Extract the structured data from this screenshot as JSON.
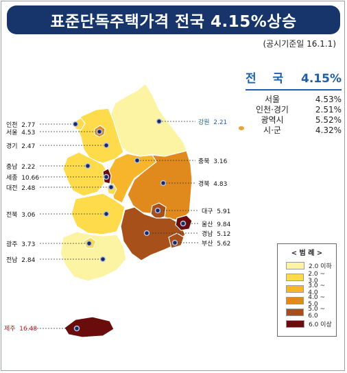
{
  "title": "표준단독주택가격 전국 4.15%상승",
  "subtitle": "(공시기준일 16.1.1)",
  "summary": {
    "national_label": "전 국",
    "national_value": "4.15%",
    "rows": [
      {
        "label": "서울",
        "value": "4.53%"
      },
      {
        "label": "인천·경기",
        "value": "2.51%"
      },
      {
        "label": "광역시",
        "value": "5.52%"
      },
      {
        "label": "시·군",
        "value": "4.32%"
      }
    ]
  },
  "regions": {
    "incheon": {
      "name": "인천",
      "value": "2.77"
    },
    "seoul": {
      "name": "서울",
      "value": "4.53"
    },
    "gyeonggi": {
      "name": "경기",
      "value": "2.47"
    },
    "chungnam": {
      "name": "충남",
      "value": "2.22"
    },
    "sejong": {
      "name": "세종",
      "value": "10.66"
    },
    "daejeon": {
      "name": "대전",
      "value": "2.48"
    },
    "jeonbuk": {
      "name": "전북",
      "value": "3.06"
    },
    "gwangju": {
      "name": "광주",
      "value": "3.73"
    },
    "jeonnam": {
      "name": "전남",
      "value": "2.84"
    },
    "jeju": {
      "name": "제주",
      "value": "16.48"
    },
    "gangwon": {
      "name": "강원",
      "value": "2.21"
    },
    "chungbuk": {
      "name": "충북",
      "value": "3.16"
    },
    "gyeongbuk": {
      "name": "경북",
      "value": "4.83"
    },
    "daegu": {
      "name": "대구",
      "value": "5.91"
    },
    "ulsan": {
      "name": "울산",
      "value": "9.84"
    },
    "gyeongnam": {
      "name": "경남",
      "value": "5.12"
    },
    "busan": {
      "name": "부산",
      "value": "5.62"
    }
  },
  "legend": {
    "title": "< 범 례 >",
    "items": [
      {
        "label": "2.0 이하",
        "color": "#fdf4a3"
      },
      {
        "label": "2.0 ~ 3.0",
        "color": "#fddb4a"
      },
      {
        "label": "3.0 ~ 4.0",
        "color": "#f7b52c"
      },
      {
        "label": "4.0 ~ 5.0",
        "color": "#e08a1e"
      },
      {
        "label": "5.0 ~ 6.0",
        "color": "#a8501a"
      },
      {
        "label": "6.0 이상",
        "color": "#6b0c0c"
      }
    ]
  }
}
